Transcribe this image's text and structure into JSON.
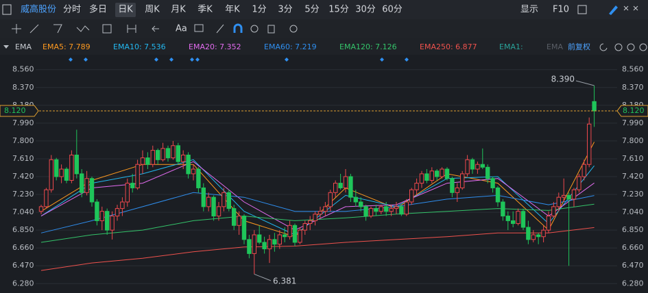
{
  "chart_data": {
    "type": "candlestick",
    "stock": "威高股份",
    "periods": [
      "分时",
      "多日",
      "日K",
      "周K",
      "月K",
      "季K",
      "年K",
      "1分",
      "3分",
      "5分",
      "15分",
      "30分",
      "60分"
    ],
    "toolbar_right": [
      "显示",
      "F10"
    ],
    "tool_text": "Aa",
    "indicator": "EMA",
    "adjust": "前复权",
    "legend_extra": [
      "EMA1:",
      "EMA"
    ],
    "up_color": "#f0494d",
    "down_color": "#1fc55a",
    "ylim": [
      6.18,
      8.66
    ],
    "yticks": [
      {
        "value": 8.56,
        "label": "8.560"
      },
      {
        "value": 8.37,
        "label": "8.370"
      },
      {
        "value": 8.18,
        "label": "8.180"
      },
      {
        "value": 7.99,
        "label": "7.990"
      },
      {
        "value": 7.8,
        "label": "7.800"
      },
      {
        "value": 7.61,
        "label": "7.610"
      },
      {
        "value": 7.42,
        "label": "7.420"
      },
      {
        "value": 7.23,
        "label": "7.230"
      },
      {
        "value": 7.04,
        "label": "7.040"
      },
      {
        "value": 6.85,
        "label": "6.850"
      },
      {
        "value": 6.66,
        "label": "6.660"
      },
      {
        "value": 6.47,
        "label": "6.470"
      },
      {
        "value": 6.28,
        "label": "6.280"
      }
    ],
    "grid": true,
    "last_price": {
      "value": 8.12,
      "label": "8.120"
    },
    "high": {
      "value": 8.39,
      "label": "8.390"
    },
    "low": 6.381,
    "candles": [
      [
        7.05,
        7.12,
        7.02,
        7.1
      ],
      [
        7.1,
        7.3,
        7.08,
        7.28
      ],
      [
        7.28,
        7.65,
        7.25,
        7.6
      ],
      [
        7.6,
        7.62,
        7.38,
        7.42
      ],
      [
        7.42,
        7.55,
        7.35,
        7.5
      ],
      [
        7.5,
        7.52,
        7.35,
        7.38
      ],
      [
        7.38,
        7.7,
        7.35,
        7.65
      ],
      [
        7.65,
        7.92,
        7.4,
        7.45
      ],
      [
        7.45,
        7.5,
        7.2,
        7.25
      ],
      [
        7.25,
        7.48,
        7.22,
        7.4
      ],
      [
        7.4,
        7.42,
        7.1,
        7.15
      ],
      [
        7.15,
        7.18,
        6.9,
        6.95
      ],
      [
        6.95,
        7.1,
        6.85,
        7.05
      ],
      [
        7.05,
        7.08,
        6.8,
        6.85
      ],
      [
        6.85,
        7.05,
        6.75,
        7.0
      ],
      [
        7.0,
        7.12,
        6.95,
        7.08
      ],
      [
        7.08,
        7.2,
        7.0,
        7.15
      ],
      [
        7.15,
        7.4,
        7.1,
        7.35
      ],
      [
        7.35,
        7.45,
        7.25,
        7.3
      ],
      [
        7.3,
        7.6,
        7.28,
        7.55
      ],
      [
        7.55,
        7.7,
        7.45,
        7.62
      ],
      [
        7.62,
        7.68,
        7.5,
        7.55
      ],
      [
        7.55,
        7.75,
        7.52,
        7.7
      ],
      [
        7.7,
        7.72,
        7.55,
        7.6
      ],
      [
        7.6,
        7.78,
        7.58,
        7.72
      ],
      [
        7.72,
        7.75,
        7.58,
        7.62
      ],
      [
        7.62,
        7.8,
        7.6,
        7.75
      ],
      [
        7.75,
        7.78,
        7.55,
        7.58
      ],
      [
        7.58,
        7.7,
        7.5,
        7.65
      ],
      [
        7.65,
        7.68,
        7.4,
        7.45
      ],
      [
        7.45,
        7.55,
        7.38,
        7.5
      ],
      [
        7.5,
        7.52,
        7.25,
        7.3
      ],
      [
        7.3,
        7.35,
        7.05,
        7.1
      ],
      [
        7.1,
        7.25,
        7.05,
        7.2
      ],
      [
        7.2,
        7.22,
        6.95,
        7.0
      ],
      [
        7.0,
        7.15,
        6.95,
        7.1
      ],
      [
        7.1,
        7.3,
        7.05,
        7.25
      ],
      [
        7.25,
        7.28,
        7.05,
        7.08
      ],
      [
        7.08,
        7.12,
        6.85,
        6.9
      ],
      [
        6.9,
        7.05,
        6.8,
        7.0
      ],
      [
        7.0,
        7.02,
        6.7,
        6.75
      ],
      [
        6.75,
        6.8,
        6.55,
        6.6
      ],
      [
        6.6,
        6.85,
        6.381,
        6.8
      ],
      [
        6.8,
        6.9,
        6.7,
        6.72
      ],
      [
        6.72,
        6.78,
        6.6,
        6.65
      ],
      [
        6.65,
        6.8,
        6.5,
        6.75
      ],
      [
        6.75,
        6.82,
        6.62,
        6.7
      ],
      [
        6.7,
        6.85,
        6.65,
        6.8
      ],
      [
        6.8,
        6.88,
        6.72,
        6.78
      ],
      [
        6.78,
        6.95,
        6.75,
        6.9
      ],
      [
        6.9,
        6.92,
        6.68,
        6.72
      ],
      [
        6.72,
        6.88,
        6.7,
        6.85
      ],
      [
        6.85,
        6.95,
        6.8,
        6.92
      ],
      [
        6.92,
        7.0,
        6.85,
        6.95
      ],
      [
        6.95,
        7.05,
        6.9,
        7.02
      ],
      [
        7.02,
        7.1,
        6.98,
        7.05
      ],
      [
        7.05,
        7.15,
        7.0,
        7.1
      ],
      [
        7.1,
        7.28,
        7.05,
        7.25
      ],
      [
        7.25,
        7.38,
        7.2,
        7.35
      ],
      [
        7.35,
        7.45,
        7.28,
        7.3
      ],
      [
        7.3,
        7.5,
        7.25,
        7.42
      ],
      [
        7.42,
        7.45,
        7.15,
        7.2
      ],
      [
        7.2,
        7.28,
        7.1,
        7.15
      ],
      [
        7.15,
        7.2,
        7.05,
        7.1
      ],
      [
        7.1,
        7.12,
        6.95,
        7.0
      ],
      [
        7.0,
        7.1,
        6.98,
        7.08
      ],
      [
        7.08,
        7.12,
        7.0,
        7.05
      ],
      [
        7.05,
        7.12,
        7.02,
        7.1
      ],
      [
        7.1,
        7.15,
        7.0,
        7.05
      ],
      [
        7.05,
        7.12,
        7.0,
        7.08
      ],
      [
        7.08,
        7.15,
        7.02,
        7.1
      ],
      [
        7.1,
        7.12,
        7.0,
        7.02
      ],
      [
        7.02,
        7.18,
        7.0,
        7.15
      ],
      [
        7.15,
        7.3,
        7.12,
        7.28
      ],
      [
        7.28,
        7.4,
        7.22,
        7.35
      ],
      [
        7.35,
        7.48,
        7.3,
        7.45
      ],
      [
        7.45,
        7.5,
        7.35,
        7.38
      ],
      [
        7.38,
        7.52,
        7.35,
        7.48
      ],
      [
        7.48,
        7.5,
        7.38,
        7.42
      ],
      [
        7.42,
        7.52,
        7.4,
        7.5
      ],
      [
        7.5,
        7.52,
        7.38,
        7.4
      ],
      [
        7.4,
        7.42,
        7.2,
        7.25
      ],
      [
        7.25,
        7.35,
        7.15,
        7.3
      ],
      [
        7.3,
        7.48,
        7.28,
        7.45
      ],
      [
        7.45,
        7.65,
        7.42,
        7.6
      ],
      [
        7.6,
        7.62,
        7.45,
        7.5
      ],
      [
        7.5,
        7.58,
        7.45,
        7.55
      ],
      [
        7.55,
        7.72,
        7.5,
        7.52
      ],
      [
        7.52,
        7.55,
        7.35,
        7.4
      ],
      [
        7.4,
        7.42,
        7.25,
        7.3
      ],
      [
        7.3,
        7.32,
        7.1,
        7.15
      ],
      [
        7.15,
        7.18,
        6.95,
        7.0
      ],
      [
        7.0,
        7.05,
        6.85,
        6.95
      ],
      [
        6.95,
        7.05,
        6.88,
        6.92
      ],
      [
        6.92,
        7.08,
        6.9,
        7.05
      ],
      [
        7.05,
        7.08,
        6.85,
        6.88
      ],
      [
        6.88,
        6.95,
        6.7,
        6.75
      ],
      [
        6.75,
        6.85,
        6.72,
        6.8
      ],
      [
        6.8,
        6.82,
        6.7,
        6.78
      ],
      [
        6.78,
        6.9,
        6.72,
        6.85
      ],
      [
        6.85,
        7.05,
        6.82,
        7.0
      ],
      [
        7.0,
        7.15,
        6.98,
        7.1
      ],
      [
        7.1,
        7.25,
        7.05,
        7.2
      ],
      [
        7.2,
        7.4,
        7.15,
        7.22
      ],
      [
        7.22,
        7.25,
        6.47,
        7.18
      ],
      [
        7.18,
        7.3,
        7.1,
        7.28
      ],
      [
        7.28,
        7.45,
        7.25,
        7.42
      ],
      [
        7.42,
        7.6,
        7.38,
        7.55
      ],
      [
        7.55,
        8.05,
        7.52,
        7.98
      ],
      [
        8.22,
        8.39,
        7.95,
        8.12
      ]
    ],
    "series": [
      {
        "name": "EMA5",
        "label": "EMA5: 7.789",
        "color": "#ff9a1f",
        "x": [
          0,
          10,
          20,
          30,
          40,
          50,
          60,
          70,
          80,
          90,
          100,
          109
        ],
        "values": [
          7.05,
          7.38,
          7.55,
          7.55,
          6.95,
          6.78,
          7.3,
          7.08,
          7.45,
          7.35,
          6.85,
          7.789
        ]
      },
      {
        "name": "EMA10",
        "label": "EMA10: 7.536",
        "color": "#22b8f0",
        "x": [
          0,
          10,
          20,
          30,
          40,
          50,
          60,
          70,
          80,
          90,
          100,
          109
        ],
        "values": [
          7.0,
          7.35,
          7.45,
          7.6,
          7.05,
          6.8,
          7.22,
          7.1,
          7.4,
          7.42,
          6.92,
          7.536
        ]
      },
      {
        "name": "EMA20",
        "label": "EMA20: 7.352",
        "color": "#e36cf0",
        "x": [
          0,
          10,
          20,
          30,
          40,
          50,
          60,
          70,
          80,
          90,
          100,
          109
        ],
        "values": [
          7.0,
          7.3,
          7.35,
          7.58,
          7.15,
          6.85,
          7.1,
          7.12,
          7.35,
          7.4,
          7.0,
          7.352
        ]
      },
      {
        "name": "EMA60",
        "label": "EMA60: 7.219",
        "color": "#2f8ff0",
        "x": [
          0,
          10,
          20,
          30,
          40,
          50,
          60,
          70,
          80,
          90,
          100,
          109
        ],
        "values": [
          6.82,
          6.95,
          7.1,
          7.25,
          7.2,
          7.05,
          7.05,
          7.1,
          7.18,
          7.22,
          7.12,
          7.219
        ]
      },
      {
        "name": "EMA120",
        "label": "EMA120: 7.126",
        "color": "#34c46a",
        "x": [
          0,
          10,
          20,
          30,
          40,
          50,
          60,
          70,
          80,
          90,
          100,
          109
        ],
        "values": [
          6.72,
          6.8,
          6.85,
          6.95,
          7.0,
          6.95,
          6.98,
          7.02,
          7.05,
          7.08,
          7.06,
          7.126
        ]
      },
      {
        "name": "EMA250",
        "label": "EMA250: 6.877",
        "color": "#f0524d",
        "x": [
          0,
          10,
          20,
          30,
          40,
          50,
          60,
          70,
          80,
          90,
          100,
          109
        ],
        "values": [
          6.42,
          6.5,
          6.55,
          6.62,
          6.67,
          6.68,
          6.72,
          6.75,
          6.78,
          6.82,
          6.82,
          6.877
        ]
      }
    ]
  }
}
